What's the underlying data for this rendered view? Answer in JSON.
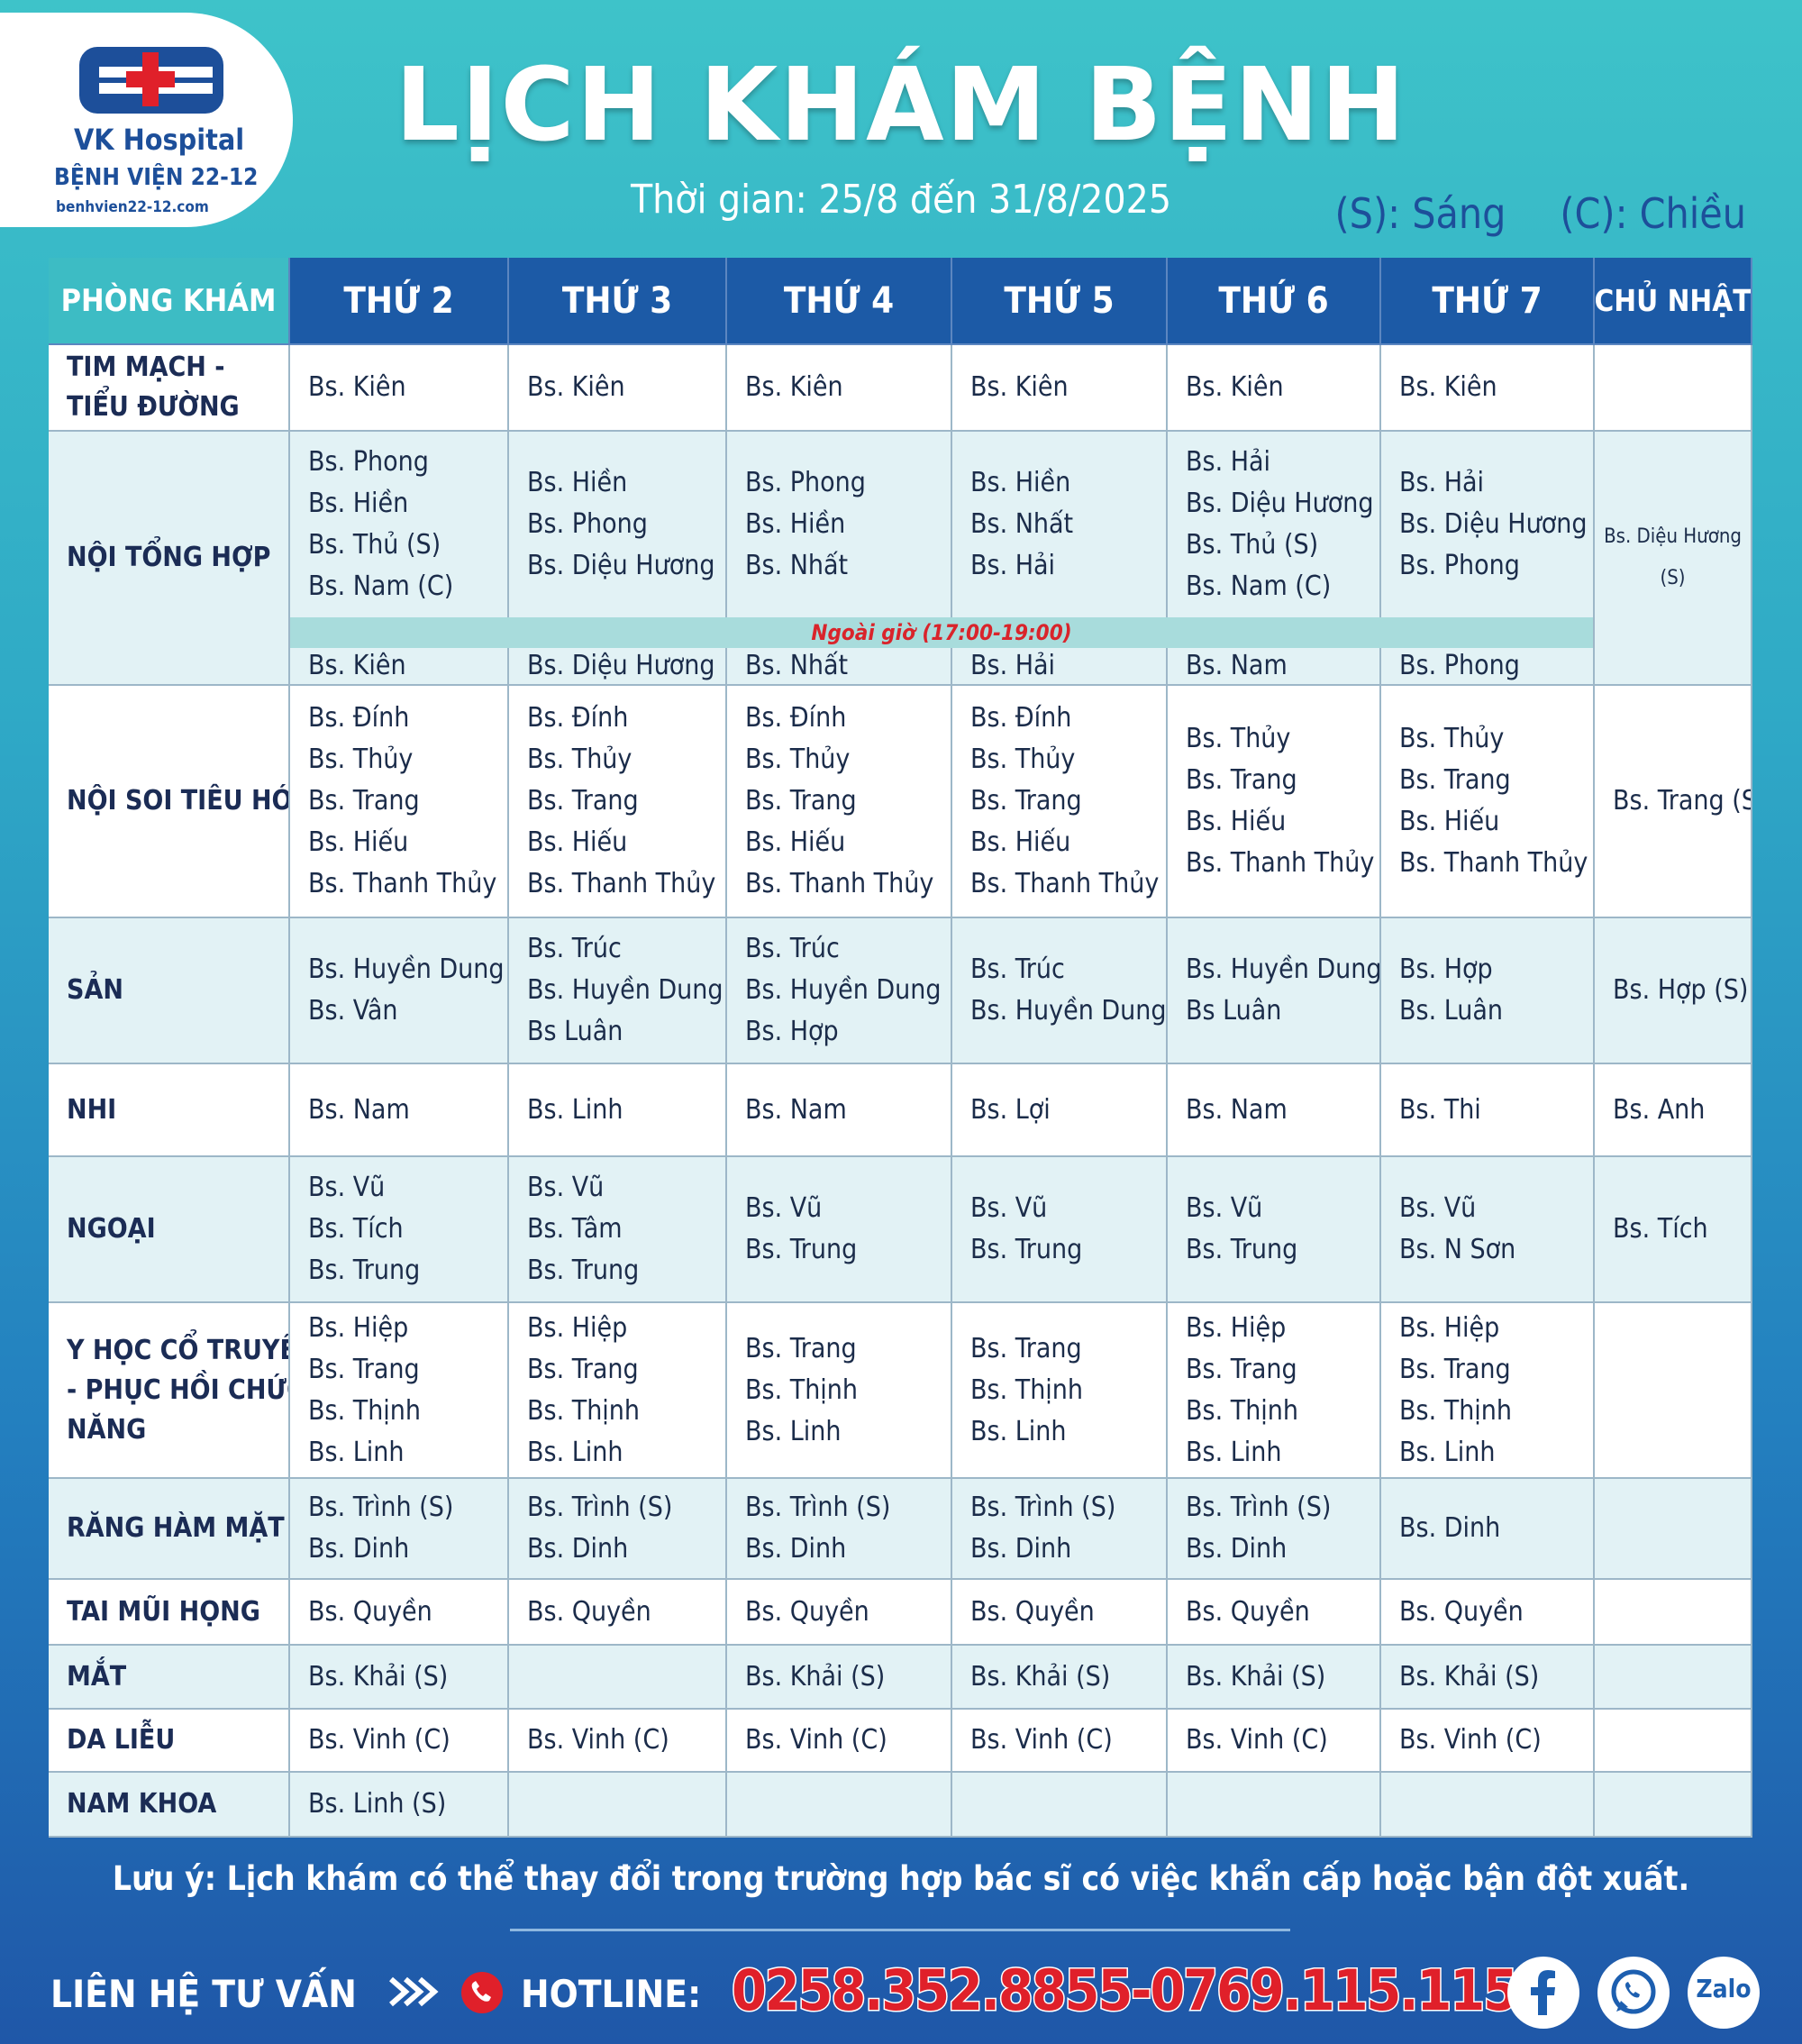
{
  "header": {
    "logo": {
      "brand": "VK Hospital",
      "name": "BỆNH VIỆN 22-12",
      "website": "benhvien22-12.com"
    },
    "title": "LỊCH KHÁM BỆNH",
    "period": "Thời gian: 25/8 đến 31/8/2025",
    "legend": [
      "(S): Sáng",
      "(C): Chiều"
    ]
  },
  "table": {
    "headers": [
      "PHÒNG KHÁM",
      "THỨ 2",
      "THỨ 3",
      "THỨ 4",
      "THỨ 5",
      "THỨ 6",
      "THỨ 7",
      "CHỦ NHẬT"
    ],
    "rows": [
      {
        "label": [
          "TIM MẠCH -",
          "TIỂU ĐƯỜNG"
        ],
        "cells": [
          [
            "Bs. Kiên"
          ],
          [
            "Bs. Kiên"
          ],
          [
            "Bs. Kiên"
          ],
          [
            "Bs. Kiên"
          ],
          [
            "Bs. Kiên"
          ],
          [
            "Bs. Kiên"
          ],
          []
        ]
      },
      {
        "label": [
          "NỘI TỔNG HỢP"
        ],
        "cells": [
          [
            "Bs. Phong",
            "Bs. Hiền",
            "Bs. Thủ (S)",
            "Bs. Nam (C)"
          ],
          [
            "Bs. Hiền",
            "Bs. Phong",
            "Bs. Diệu Hương"
          ],
          [
            "Bs. Phong",
            "Bs. Hiền",
            "Bs. Nhất"
          ],
          [
            "Bs. Hiền",
            "Bs. Nhất",
            "Bs. Hải"
          ],
          [
            "Bs. Hải",
            "Bs. Diệu Hương",
            "Bs. Thủ (S)",
            "Bs. Nam (C)"
          ],
          [
            "Bs. Hải",
            "Bs. Diệu Hương",
            "Bs. Phong"
          ],
          [
            "Bs. Diệu Hương",
            "(S)"
          ]
        ],
        "overtime": {
          "label": "Ngoài giờ (17:00-19:00)",
          "cells": [
            "Bs. Kiên",
            "Bs. Diệu Hương",
            "Bs. Nhất",
            "Bs. Hải",
            "Bs. Nam",
            "Bs. Phong"
          ]
        }
      },
      {
        "label": [
          "NỘI SOI TIÊU HÓA"
        ],
        "cells": [
          [
            "Bs. Đính",
            "Bs. Thủy",
            "Bs. Trang",
            "Bs. Hiếu",
            "Bs. Thanh Thủy"
          ],
          [
            "Bs. Đính",
            "Bs. Thủy",
            "Bs. Trang",
            "Bs. Hiếu",
            "Bs. Thanh Thủy"
          ],
          [
            "Bs. Đính",
            "Bs. Thủy",
            "Bs. Trang",
            "Bs. Hiếu",
            "Bs. Thanh Thủy"
          ],
          [
            "Bs. Đính",
            "Bs. Thủy",
            "Bs. Trang",
            "Bs. Hiếu",
            "Bs. Thanh Thủy"
          ],
          [
            "Bs. Thủy",
            "Bs. Trang",
            "Bs. Hiếu",
            "Bs. Thanh Thủy"
          ],
          [
            "Bs. Thủy",
            "Bs. Trang",
            "Bs. Hiếu",
            "Bs. Thanh Thủy"
          ],
          [
            "Bs. Trang (S)"
          ]
        ]
      },
      {
        "label": [
          "SẢN"
        ],
        "cells": [
          [
            "Bs. Huyền Dung",
            "Bs. Vân"
          ],
          [
            "Bs. Trúc",
            "Bs. Huyền Dung",
            "Bs Luân"
          ],
          [
            "Bs. Trúc",
            "Bs. Huyền Dung",
            "Bs. Hợp"
          ],
          [
            "Bs. Trúc",
            "Bs. Huyền Dung"
          ],
          [
            "Bs. Huyền Dung",
            "Bs Luân"
          ],
          [
            "Bs. Hợp",
            "Bs. Luân"
          ],
          [
            "Bs. Hợp (S)"
          ]
        ]
      },
      {
        "label": [
          "NHI"
        ],
        "cells": [
          [
            "Bs. Nam"
          ],
          [
            "Bs. Linh"
          ],
          [
            "Bs. Nam"
          ],
          [
            "Bs. Lợi"
          ],
          [
            "Bs. Nam"
          ],
          [
            "Bs. Thi"
          ],
          [
            "Bs. Anh"
          ]
        ]
      },
      {
        "label": [
          "NGOẠI"
        ],
        "cells": [
          [
            "Bs. Vũ",
            "Bs. Tích",
            "Bs. Trung"
          ],
          [
            "Bs. Vũ",
            "Bs. Tâm",
            "Bs. Trung"
          ],
          [
            "Bs. Vũ",
            "Bs. Trung"
          ],
          [
            "Bs. Vũ",
            "Bs. Trung"
          ],
          [
            "Bs. Vũ",
            "Bs. Trung"
          ],
          [
            "Bs. Vũ",
            "Bs. N Sơn"
          ],
          [
            "Bs. Tích"
          ]
        ]
      },
      {
        "label": [
          "Y HỌC CỔ TRUYỀN",
          "- PHỤC HỒI CHỨC",
          "NĂNG"
        ],
        "cells": [
          [
            "Bs. Hiệp",
            "Bs. Trang",
            "Bs. Thịnh",
            "Bs. Linh"
          ],
          [
            "Bs. Hiệp",
            "Bs. Trang",
            "Bs. Thịnh",
            "Bs. Linh"
          ],
          [
            "Bs. Trang",
            "Bs. Thịnh",
            "Bs. Linh"
          ],
          [
            "Bs. Trang",
            "Bs. Thịnh",
            "Bs. Linh"
          ],
          [
            "Bs. Hiệp",
            "Bs. Trang",
            "Bs. Thịnh",
            "Bs. Linh"
          ],
          [
            "Bs. Hiệp",
            "Bs. Trang",
            "Bs. Thịnh",
            "Bs. Linh"
          ],
          []
        ]
      },
      {
        "label": [
          "RĂNG HÀM MẶT"
        ],
        "cells": [
          [
            "Bs. Trình (S)",
            "Bs. Dinh"
          ],
          [
            "Bs. Trình (S)",
            "Bs. Dinh"
          ],
          [
            "Bs. Trình (S)",
            "Bs. Dinh"
          ],
          [
            "Bs. Trình (S)",
            "Bs. Dinh"
          ],
          [
            "Bs. Trình (S)",
            "Bs. Dinh"
          ],
          [
            "Bs. Dinh"
          ],
          []
        ]
      },
      {
        "label": [
          "TAI MŨI HỌNG"
        ],
        "cells": [
          [
            "Bs. Quyền"
          ],
          [
            "Bs. Quyền"
          ],
          [
            "Bs. Quyền"
          ],
          [
            "Bs. Quyền"
          ],
          [
            "Bs. Quyền"
          ],
          [
            "Bs. Quyền"
          ],
          []
        ]
      },
      {
        "label": [
          "MẮT"
        ],
        "cells": [
          [
            "Bs. Khải (S)"
          ],
          [],
          [
            "Bs. Khải (S)"
          ],
          [
            "Bs. Khải (S)"
          ],
          [
            "Bs. Khải  (S)"
          ],
          [
            "Bs. Khải (S)"
          ],
          []
        ]
      },
      {
        "label": [
          "DA LIỄU"
        ],
        "cells": [
          [
            "Bs. Vinh (C)"
          ],
          [
            "Bs. Vinh (C)"
          ],
          [
            "Bs. Vinh (C)"
          ],
          [
            "Bs. Vinh (C)"
          ],
          [
            "Bs. Vinh (C)"
          ],
          [
            "Bs. Vinh (C)"
          ],
          []
        ]
      },
      {
        "label": [
          "NAM KHOA"
        ],
        "cells": [
          [
            "Bs. Linh (S)"
          ],
          [],
          [],
          [],
          [],
          [],
          []
        ]
      }
    ]
  },
  "footer": {
    "note": "Lưu ý: Lịch khám có thể thay đổi trong trường hợp bác sĩ có việc khẩn cấp hoặc bận đột xuất.",
    "contact": "LIÊN HỆ TƯ VẤN",
    "hotline_label": "HOTLINE:",
    "hotline": "0258.352.8855-0769.115.115",
    "zalo": "Zalo"
  }
}
